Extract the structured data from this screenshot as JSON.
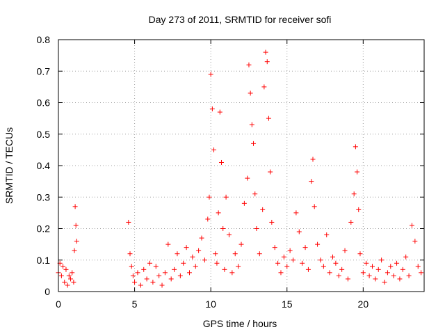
{
  "chart_data": {
    "type": "scatter",
    "title": "Day 273 of 2011, SRMTID for receiver sofi",
    "xlabel": "GPS time / hours",
    "ylabel": "SRMTID / TECUs",
    "xlim": [
      0,
      24
    ],
    "ylim": [
      0,
      0.8
    ],
    "x_ticks": [
      0,
      5,
      10,
      15,
      20
    ],
    "x_tick_labels": [
      "0",
      "5",
      "10",
      "15",
      "20"
    ],
    "y_ticks": [
      0,
      0.1,
      0.2,
      0.3,
      0.4,
      0.5,
      0.6,
      0.7,
      0.8
    ],
    "y_tick_labels": [
      "0",
      "0.1",
      "0.2",
      "0.3",
      "0.4",
      "0.5",
      "0.6",
      "0.7",
      "0.8"
    ],
    "grid": true,
    "marker": "+",
    "marker_color": "#ff0000",
    "series": [
      {
        "name": "SRMTID",
        "x": [
          0.0,
          0.1,
          0.2,
          0.3,
          0.4,
          0.5,
          0.6,
          0.7,
          0.8,
          0.9,
          1.0,
          1.05,
          1.1,
          1.15,
          1.2,
          4.6,
          4.7,
          4.8,
          4.9,
          5.0,
          5.2,
          5.4,
          5.6,
          5.8,
          6.0,
          6.2,
          6.4,
          6.6,
          6.8,
          7.0,
          7.2,
          7.4,
          7.6,
          7.8,
          8.0,
          8.2,
          8.4,
          8.6,
          8.8,
          9.0,
          9.2,
          9.4,
          9.6,
          9.8,
          9.9,
          10.0,
          10.1,
          10.2,
          10.3,
          10.4,
          10.5,
          10.6,
          10.7,
          10.8,
          10.9,
          11.0,
          11.2,
          11.4,
          11.6,
          11.8,
          12.0,
          12.2,
          12.4,
          12.5,
          12.6,
          12.7,
          12.8,
          12.9,
          13.0,
          13.2,
          13.4,
          13.5,
          13.6,
          13.7,
          13.8,
          13.9,
          14.0,
          14.2,
          14.4,
          14.6,
          14.8,
          15.0,
          15.2,
          15.4,
          15.6,
          15.8,
          16.0,
          16.2,
          16.4,
          16.6,
          16.7,
          16.8,
          17.0,
          17.2,
          17.4,
          17.6,
          17.8,
          18.0,
          18.2,
          18.4,
          18.6,
          18.8,
          19.0,
          19.2,
          19.4,
          19.5,
          19.6,
          19.7,
          19.8,
          20.0,
          20.2,
          20.4,
          20.6,
          20.8,
          21.0,
          21.2,
          21.4,
          21.6,
          21.8,
          22.0,
          22.2,
          22.4,
          22.6,
          22.8,
          23.0,
          23.2,
          23.4,
          23.6,
          23.8
        ],
        "y": [
          0.06,
          0.09,
          0.05,
          0.08,
          0.03,
          0.07,
          0.02,
          0.05,
          0.04,
          0.06,
          0.03,
          0.13,
          0.27,
          0.21,
          0.16,
          0.22,
          0.12,
          0.08,
          0.05,
          0.03,
          0.06,
          0.02,
          0.07,
          0.04,
          0.09,
          0.03,
          0.08,
          0.05,
          0.02,
          0.06,
          0.15,
          0.04,
          0.07,
          0.12,
          0.05,
          0.09,
          0.14,
          0.06,
          0.11,
          0.08,
          0.13,
          0.17,
          0.1,
          0.23,
          0.3,
          0.69,
          0.58,
          0.45,
          0.12,
          0.09,
          0.25,
          0.57,
          0.41,
          0.2,
          0.07,
          0.3,
          0.18,
          0.06,
          0.12,
          0.08,
          0.15,
          0.28,
          0.36,
          0.72,
          0.63,
          0.53,
          0.47,
          0.31,
          0.2,
          0.12,
          0.26,
          0.65,
          0.76,
          0.73,
          0.55,
          0.38,
          0.22,
          0.14,
          0.09,
          0.06,
          0.11,
          0.08,
          0.13,
          0.1,
          0.25,
          0.19,
          0.09,
          0.14,
          0.07,
          0.35,
          0.42,
          0.27,
          0.15,
          0.1,
          0.08,
          0.18,
          0.06,
          0.11,
          0.09,
          0.05,
          0.07,
          0.13,
          0.04,
          0.22,
          0.31,
          0.46,
          0.38,
          0.26,
          0.12,
          0.06,
          0.09,
          0.05,
          0.08,
          0.04,
          0.07,
          0.1,
          0.03,
          0.06,
          0.08,
          0.05,
          0.09,
          0.04,
          0.07,
          0.11,
          0.05,
          0.21,
          0.16,
          0.08,
          0.06
        ]
      }
    ]
  }
}
